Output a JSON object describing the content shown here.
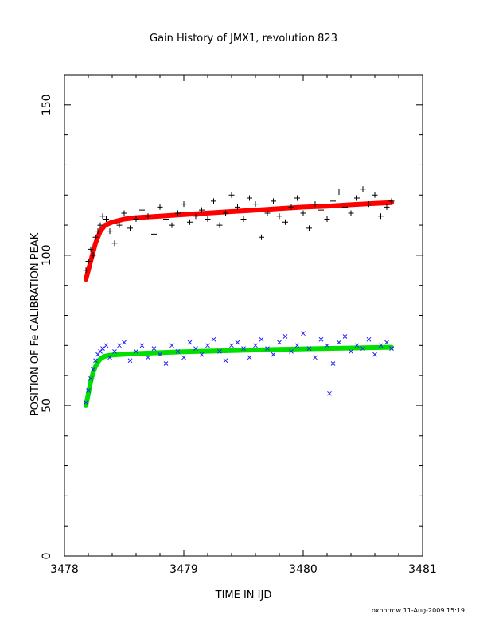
{
  "chart_data": {
    "type": "scatter",
    "title": "Gain History of JMX1, revolution 823",
    "xlabel": "TIME IN IJD",
    "ylabel": "POSITION OF Fe CALIBRATION PEAK",
    "xlim": [
      3478,
      3481
    ],
    "ylim": [
      0,
      160
    ],
    "xticks": [
      3478,
      3479,
      3480,
      3481
    ],
    "yticks": [
      0,
      50,
      100,
      150
    ],
    "grid": false,
    "legend": "none",
    "x_range_of_data": [
      3478.18,
      3480.74
    ],
    "series": [
      {
        "marker": "plus",
        "color": "#000000",
        "x": [
          3478.18,
          3478.2,
          3478.22,
          3478.24,
          3478.26,
          3478.28,
          3478.3,
          3478.32,
          3478.35,
          3478.38,
          3478.42,
          3478.46,
          3478.5,
          3478.55,
          3478.6,
          3478.65,
          3478.7,
          3478.75,
          3478.8,
          3478.85,
          3478.9,
          3478.95,
          3479.0,
          3479.05,
          3479.1,
          3479.15,
          3479.2,
          3479.25,
          3479.3,
          3479.35,
          3479.4,
          3479.45,
          3479.5,
          3479.55,
          3479.6,
          3479.65,
          3479.7,
          3479.75,
          3479.8,
          3479.85,
          3479.9,
          3479.95,
          3480.0,
          3480.05,
          3480.1,
          3480.15,
          3480.2,
          3480.25,
          3480.3,
          3480.35,
          3480.4,
          3480.45,
          3480.5,
          3480.55,
          3480.6,
          3480.65,
          3480.7,
          3480.74
        ],
        "y": [
          95,
          98,
          102,
          100,
          106,
          108,
          110,
          113,
          112,
          108,
          104,
          110,
          114,
          109,
          112,
          115,
          113,
          107,
          116,
          112,
          110,
          114,
          117,
          111,
          113,
          115,
          112,
          118,
          110,
          114,
          120,
          116,
          112,
          119,
          117,
          106,
          114,
          118,
          113,
          111,
          116,
          119,
          114,
          109,
          117,
          115,
          112,
          118,
          121,
          116,
          114,
          119,
          122,
          117,
          120,
          113,
          116,
          118
        ]
      },
      {
        "marker": "cross",
        "color": "#1f1fff",
        "x": [
          3478.18,
          3478.2,
          3478.22,
          3478.24,
          3478.26,
          3478.28,
          3478.3,
          3478.32,
          3478.35,
          3478.38,
          3478.42,
          3478.46,
          3478.5,
          3478.55,
          3478.6,
          3478.65,
          3478.7,
          3478.75,
          3478.8,
          3478.85,
          3478.9,
          3478.95,
          3479.0,
          3479.05,
          3479.1,
          3479.15,
          3479.2,
          3479.25,
          3479.3,
          3479.35,
          3479.4,
          3479.45,
          3479.5,
          3479.55,
          3479.6,
          3479.65,
          3479.7,
          3479.75,
          3479.8,
          3479.85,
          3479.9,
          3479.95,
          3480.0,
          3480.05,
          3480.1,
          3480.15,
          3480.2,
          3480.22,
          3480.25,
          3480.3,
          3480.35,
          3480.4,
          3480.45,
          3480.5,
          3480.55,
          3480.6,
          3480.65,
          3480.7,
          3480.74
        ],
        "y": [
          51,
          55,
          59,
          62,
          65,
          67,
          68,
          69,
          70,
          66,
          68,
          70,
          71,
          65,
          68,
          70,
          66,
          69,
          67,
          64,
          70,
          68,
          66,
          71,
          69,
          67,
          70,
          72,
          68,
          65,
          70,
          71,
          69,
          66,
          70,
          72,
          69,
          67,
          71,
          73,
          68,
          70,
          74,
          69,
          66,
          72,
          70,
          54,
          64,
          71,
          73,
          68,
          70,
          69,
          72,
          67,
          70,
          71,
          69
        ]
      }
    ],
    "fits": [
      {
        "color": "#ff0000",
        "x": [
          3478.18,
          3478.22,
          3478.26,
          3478.3,
          3478.34,
          3478.4,
          3478.5,
          3478.6,
          3478.8,
          3479.0,
          3479.2,
          3479.4,
          3479.6,
          3479.8,
          3480.0,
          3480.2,
          3480.4,
          3480.6,
          3480.74
        ],
        "y": [
          92,
          98,
          104,
          108,
          110,
          111,
          112,
          112.5,
          113,
          113.5,
          114,
          114.5,
          115,
          115.5,
          116,
          116.3,
          116.8,
          117.2,
          117.5
        ]
      },
      {
        "color": "#00e000",
        "x": [
          3478.18,
          3478.2,
          3478.22,
          3478.24,
          3478.26,
          3478.28,
          3478.3,
          3478.33,
          3478.37,
          3478.45,
          3478.6,
          3478.8,
          3479.0,
          3479.4,
          3479.8,
          3480.2,
          3480.6,
          3480.74
        ],
        "y": [
          50,
          54,
          58,
          61,
          63,
          64.5,
          65.5,
          66.3,
          66.7,
          67,
          67.3,
          67.6,
          67.9,
          68.3,
          68.7,
          69,
          69.3,
          69.4
        ]
      }
    ],
    "footer": "oxborrow 11-Aug-2009 15:19"
  }
}
